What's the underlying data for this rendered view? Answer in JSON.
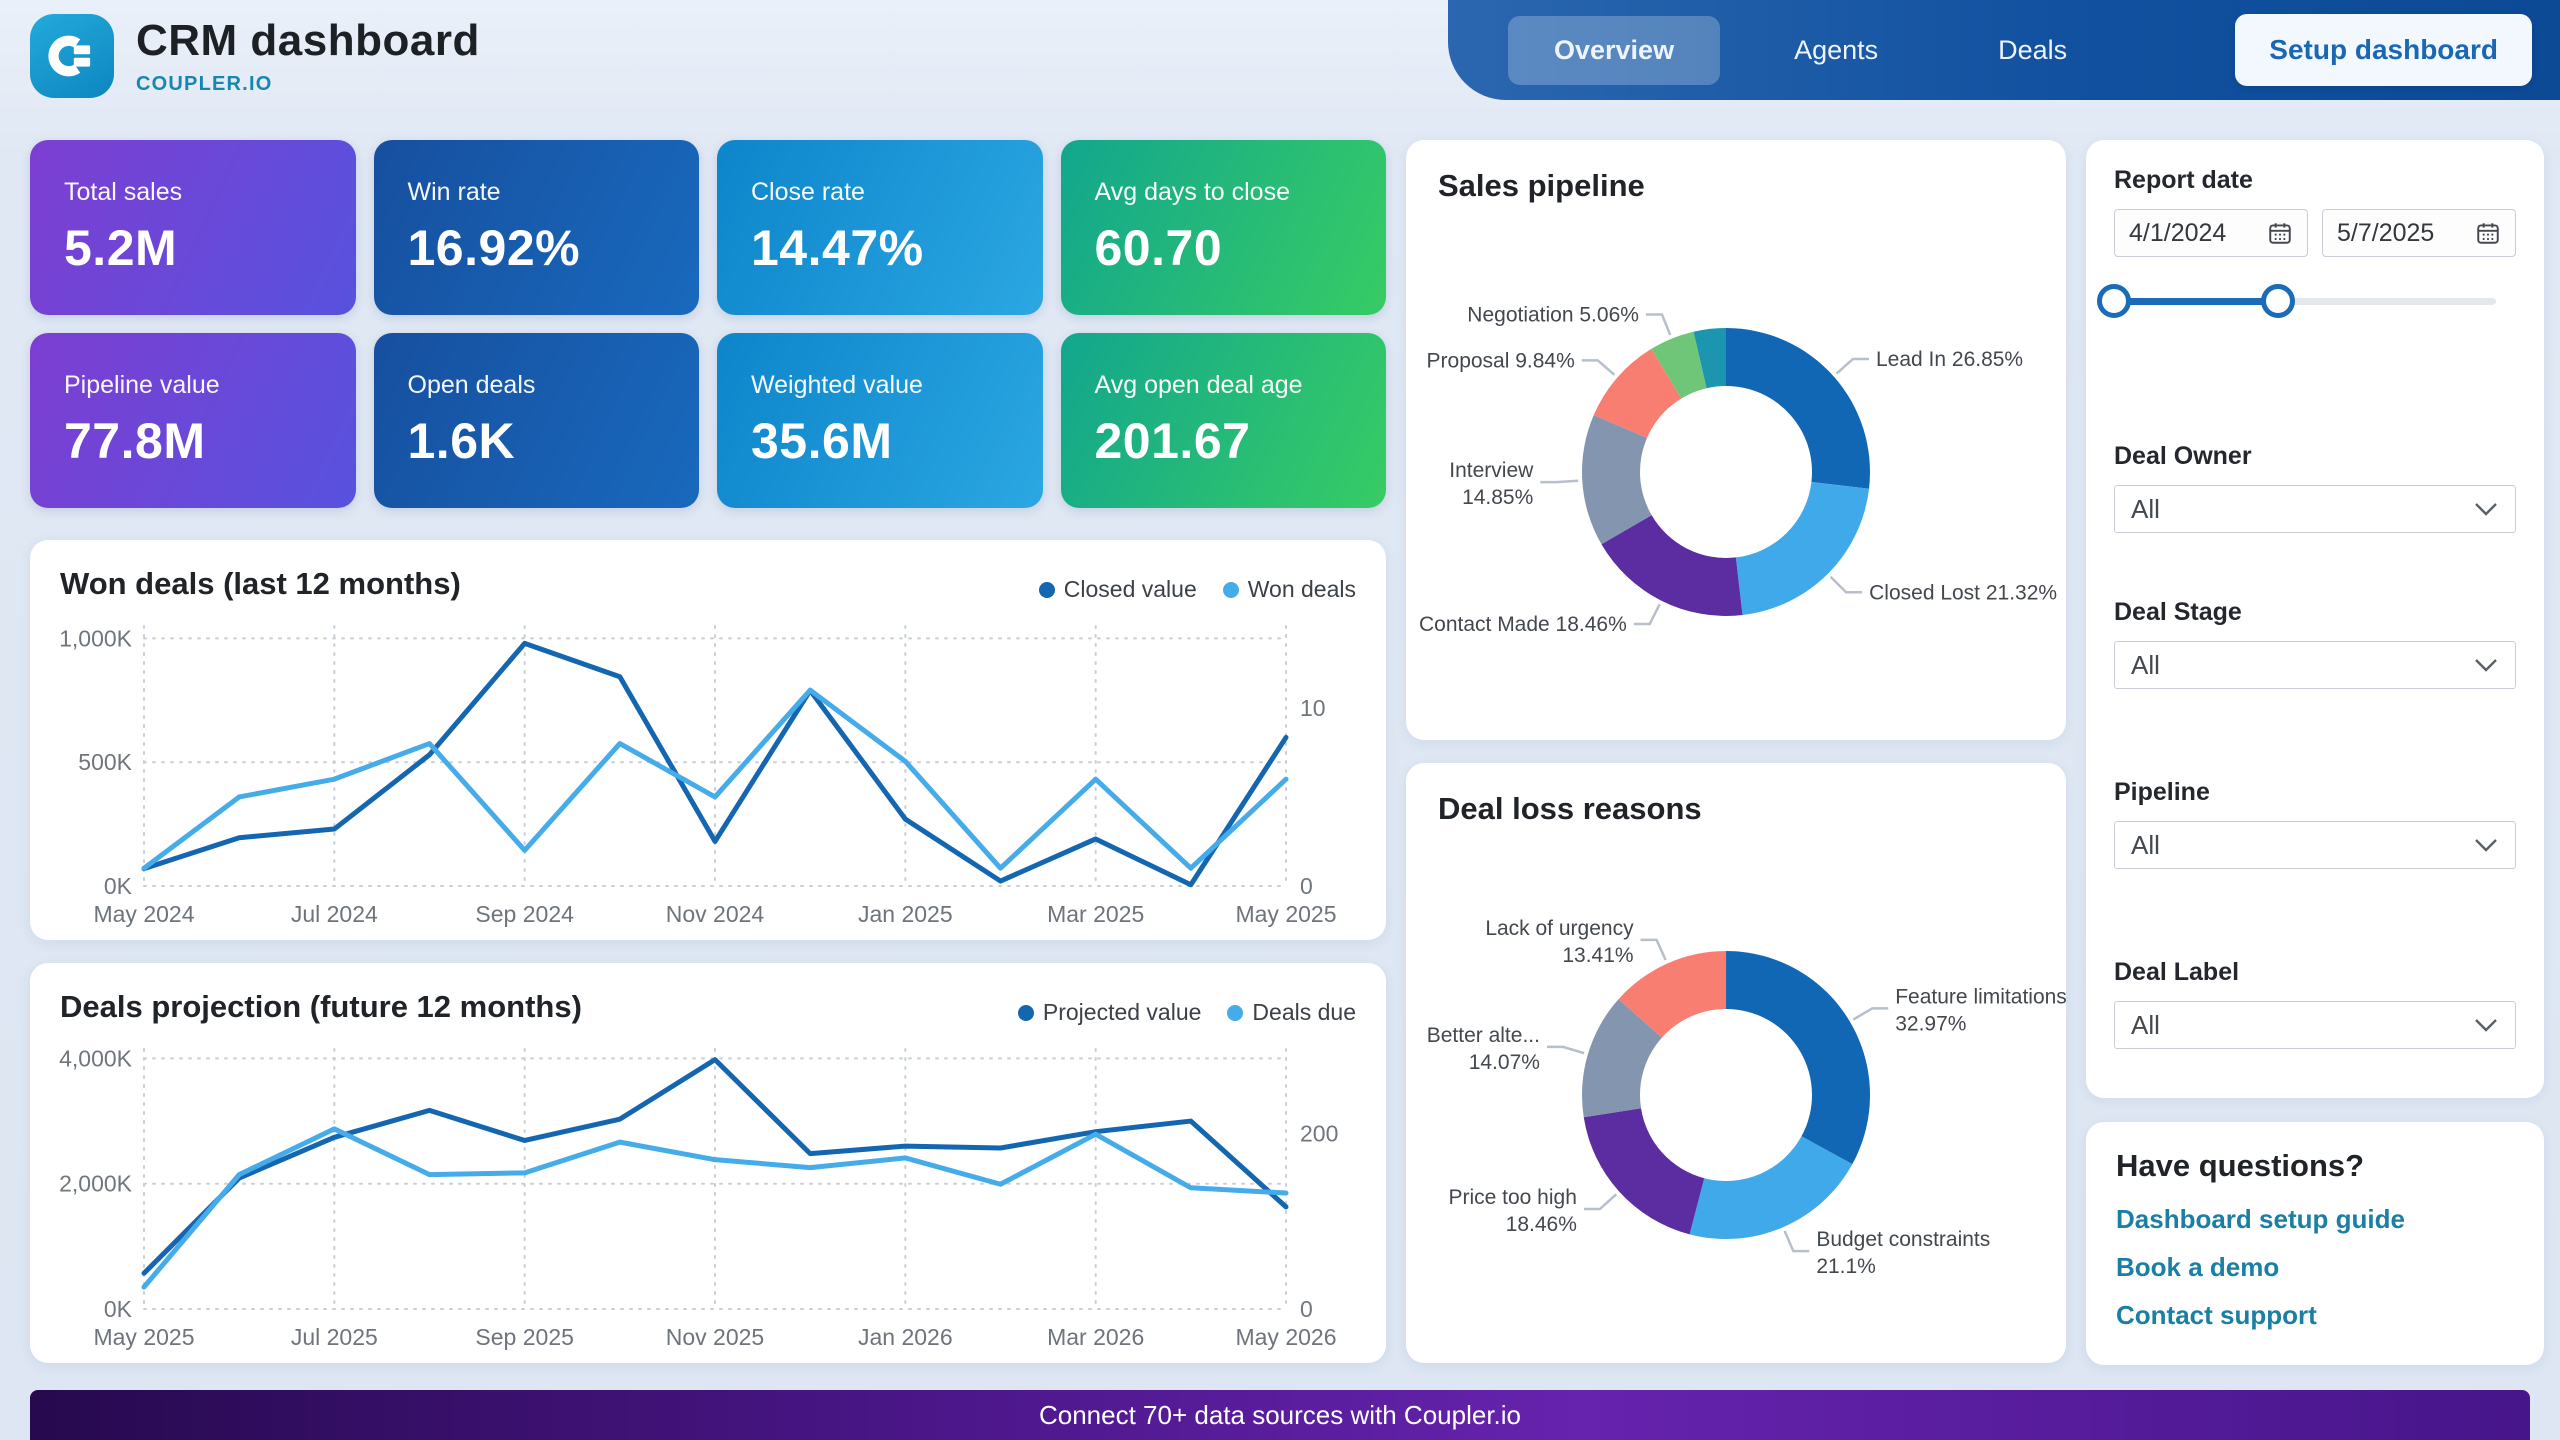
{
  "header": {
    "title": "CRM dashboard",
    "brand": "COUPLER.IO",
    "tabs": [
      {
        "label": "Overview",
        "active": true
      },
      {
        "label": "Agents",
        "active": false
      },
      {
        "label": "Deals",
        "active": false
      }
    ],
    "setup_button": "Setup dashboard"
  },
  "kpis": [
    {
      "label": "Total sales",
      "value": "5.2M",
      "theme": "purple"
    },
    {
      "label": "Win rate",
      "value": "16.92%",
      "theme": "blue"
    },
    {
      "label": "Close rate",
      "value": "14.47%",
      "theme": "lightblue"
    },
    {
      "label": "Avg days to close",
      "value": "60.70",
      "theme": "green"
    },
    {
      "label": "Pipeline value",
      "value": "77.8M",
      "theme": "purple"
    },
    {
      "label": "Open deals",
      "value": "1.6K",
      "theme": "blue"
    },
    {
      "label": "Weighted value",
      "value": "35.6M",
      "theme": "lightblue"
    },
    {
      "label": "Avg open deal age",
      "value": "201.67",
      "theme": "green"
    }
  ],
  "chart_data": [
    {
      "type": "line",
      "title": "Won deals (last 12 months)",
      "x": [
        "May 2024",
        "Jun 2024",
        "Jul 2024",
        "Aug 2024",
        "Sep 2024",
        "Oct 2024",
        "Nov 2024",
        "Dec 2024",
        "Jan 2025",
        "Feb 2025",
        "Mar 2025",
        "Apr 2025",
        "May 2025"
      ],
      "x_tick_indices": [
        0,
        2,
        4,
        6,
        8,
        10,
        12
      ],
      "series": [
        {
          "name": "Closed value",
          "axis": "left",
          "color": "#1566b1",
          "values": [
            70,
            195,
            230,
            530,
            980,
            845,
            180,
            790,
            270,
            20,
            190,
            5,
            600
          ]
        },
        {
          "name": "Won deals",
          "axis": "right",
          "color": "#45ace9",
          "values": [
            1,
            5,
            6,
            8,
            2,
            8,
            5,
            11,
            7,
            1,
            6,
            1,
            6
          ]
        }
      ],
      "y_left": {
        "lim": [
          0,
          1050
        ],
        "unit": "K",
        "ticks": [
          {
            "v": 0,
            "label": "0K"
          },
          {
            "v": 500,
            "label": "500K"
          },
          {
            "v": 1000,
            "label": "1,000K"
          }
        ]
      },
      "y_right": {
        "lim": [
          0,
          14.6
        ],
        "ticks": [
          {
            "v": 0,
            "label": "0"
          },
          {
            "v": 10,
            "label": "10"
          }
        ]
      },
      "grid": "dotted",
      "legend_position": "top-right"
    },
    {
      "type": "line",
      "title": "Deals projection (future 12 months)",
      "x": [
        "May 2025",
        "Jun 2025",
        "Jul 2025",
        "Aug 2025",
        "Sep 2025",
        "Oct 2025",
        "Nov 2025",
        "Dec 2025",
        "Jan 2026",
        "Feb 2026",
        "Mar 2026",
        "Apr 2026",
        "May 2026"
      ],
      "x_tick_indices": [
        0,
        2,
        4,
        6,
        8,
        10,
        12
      ],
      "series": [
        {
          "name": "Projected value",
          "axis": "left",
          "color": "#1566b1",
          "values": [
            570,
            2090,
            2740,
            3170,
            2690,
            3030,
            3980,
            2480,
            2600,
            2570,
            2830,
            3000,
            1630
          ]
        },
        {
          "name": "Deals due",
          "axis": "right",
          "color": "#45ace9",
          "values": [
            25,
            153,
            205,
            153,
            155,
            190,
            170,
            161,
            172,
            142,
            199,
            138,
            132
          ]
        }
      ],
      "y_left": {
        "lim": [
          0,
          4150
        ],
        "unit": "K",
        "ticks": [
          {
            "v": 0,
            "label": "0K"
          },
          {
            "v": 2000,
            "label": "2,000K"
          },
          {
            "v": 4000,
            "label": "4,000K"
          }
        ]
      },
      "y_right": {
        "lim": [
          0,
          296
        ],
        "ticks": [
          {
            "v": 0,
            "label": "0"
          },
          {
            "v": 200,
            "label": "200"
          }
        ]
      },
      "grid": "dotted",
      "legend_position": "top-right"
    },
    {
      "type": "donut",
      "title": "Sales pipeline",
      "slices": [
        {
          "label": "Lead In",
          "pct": 26.85,
          "color": "#1267b5",
          "wrap": false
        },
        {
          "label": "Closed Lost",
          "pct": 21.32,
          "color": "#3fa9e9",
          "wrap": false
        },
        {
          "label": "Contact Made",
          "pct": 18.46,
          "color": "#5c2da0",
          "wrap": false
        },
        {
          "label": "Interview",
          "pct": 14.85,
          "color": "#8496af",
          "wrap": true
        },
        {
          "label": "Proposal",
          "pct": 9.84,
          "color": "#f97e72",
          "wrap": false
        },
        {
          "label": "Negotiation",
          "pct": 5.06,
          "color": "#70c678",
          "wrap": false
        },
        {
          "label": "",
          "pct": 3.62,
          "color": "#1b96ae",
          "wrap": false
        }
      ]
    },
    {
      "type": "donut",
      "title": "Deal loss reasons",
      "slices": [
        {
          "label": "Feature limitations",
          "pct": 32.97,
          "color": "#1267b5",
          "wrap": true
        },
        {
          "label": "Budget constraints",
          "pct": 21.1,
          "color": "#3fa9e9",
          "wrap": true
        },
        {
          "label": "Price too high",
          "pct": 18.46,
          "color": "#5c2da0",
          "wrap": true
        },
        {
          "label": "Better alte...",
          "pct": 14.07,
          "color": "#8496af",
          "wrap": true
        },
        {
          "label": "Lack of urgency",
          "pct": 13.41,
          "color": "#f97e72",
          "wrap": true
        }
      ]
    }
  ],
  "filters": {
    "report_date": {
      "label": "Report date",
      "start": "4/1/2024",
      "end": "5/7/2025",
      "slider": {
        "start_pct": 0,
        "end_pct": 43
      }
    },
    "dropdowns": [
      {
        "label": "Deal Owner",
        "value": "All"
      },
      {
        "label": "Deal Stage",
        "value": "All"
      },
      {
        "label": "Pipeline",
        "value": "All"
      },
      {
        "label": "Deal Label",
        "value": "All"
      }
    ]
  },
  "questions": {
    "title": "Have questions?",
    "links": [
      "Dashboard setup guide",
      "Book a demo",
      "Contact support"
    ]
  },
  "banner": {
    "text": "Connect 70+ data sources with Coupler.io"
  }
}
